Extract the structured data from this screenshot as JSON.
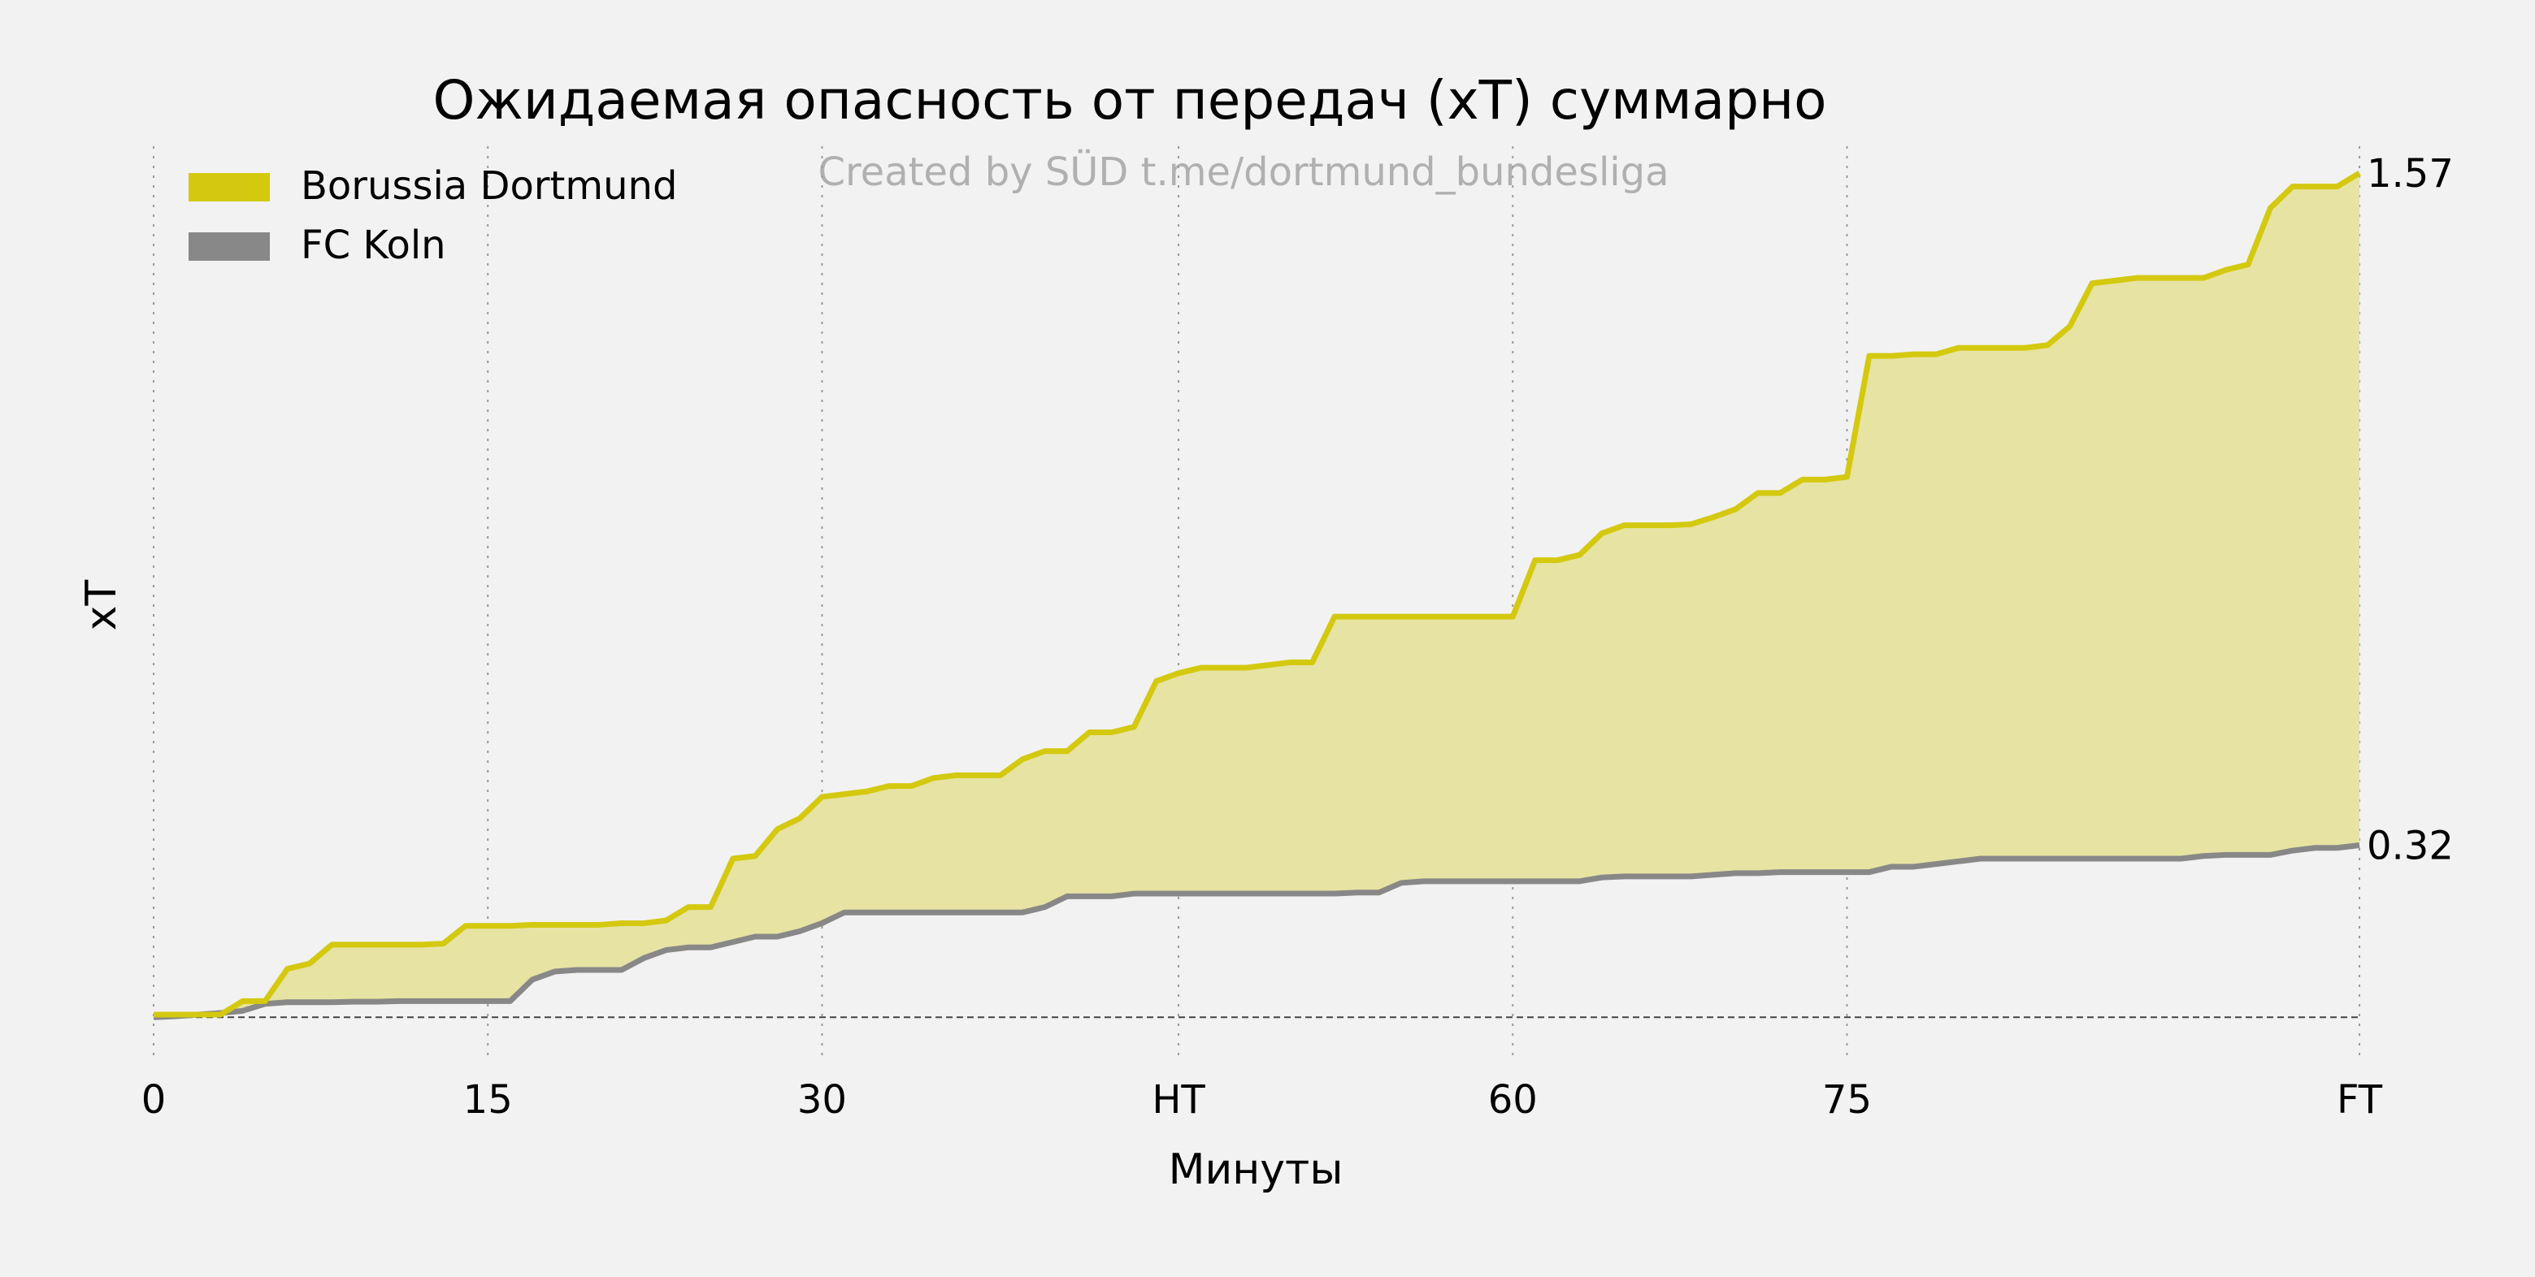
{
  "chart_data": {
    "type": "area",
    "title": "Ожидаемая опасность от передач (xT) суммарно",
    "watermark": "Created by SÜD t.me/dortmund_bundesliga",
    "xlabel": "Минуты",
    "ylabel": "xT",
    "xlim": [
      0,
      99
    ],
    "ylim": [
      -0.06,
      1.62
    ],
    "xticks": [
      {
        "value": 0,
        "label": "0"
      },
      {
        "value": 15,
        "label": "15"
      },
      {
        "value": 30,
        "label": "30"
      },
      {
        "value": 46,
        "label": "HT"
      },
      {
        "value": 61,
        "label": "60"
      },
      {
        "value": 76,
        "label": "75"
      },
      {
        "value": 99,
        "label": "FT"
      }
    ],
    "grid": {
      "x": true,
      "y": false,
      "style": "dotted"
    },
    "baseline": 0,
    "legend": {
      "position": "top-left"
    },
    "series": [
      {
        "name": "Borussia Dortmund",
        "color": "#d4c90f",
        "fill": "#e7e3a3",
        "final_label": "1.57",
        "x": [
          0,
          1,
          2,
          3,
          4,
          5,
          6,
          7,
          8,
          9,
          10,
          11,
          12,
          13,
          14,
          15,
          16,
          17,
          18,
          19,
          20,
          21,
          22,
          23,
          24,
          25,
          26,
          27,
          28,
          29,
          30,
          31,
          32,
          33,
          34,
          35,
          36,
          37,
          38,
          39,
          40,
          41,
          42,
          43,
          44,
          45,
          46,
          47,
          48,
          49,
          50,
          51,
          52,
          53,
          54,
          55,
          56,
          57,
          58,
          59,
          60,
          61,
          62,
          63,
          64,
          65,
          66,
          67,
          68,
          69,
          70,
          71,
          72,
          73,
          74,
          75,
          76,
          77,
          78,
          79,
          80,
          81,
          82,
          83,
          84,
          85,
          86,
          87,
          88,
          89,
          90,
          91,
          92,
          93,
          94,
          95,
          96,
          97,
          98,
          99
        ],
        "values": [
          0.005,
          0.005,
          0.005,
          0.005,
          0.03,
          0.03,
          0.09,
          0.1,
          0.135,
          0.135,
          0.135,
          0.135,
          0.135,
          0.137,
          0.17,
          0.17,
          0.17,
          0.172,
          0.172,
          0.172,
          0.172,
          0.175,
          0.175,
          0.18,
          0.205,
          0.205,
          0.295,
          0.3,
          0.35,
          0.37,
          0.41,
          0.415,
          0.42,
          0.43,
          0.43,
          0.445,
          0.45,
          0.45,
          0.45,
          0.48,
          0.495,
          0.495,
          0.53,
          0.53,
          0.54,
          0.625,
          0.64,
          0.65,
          0.65,
          0.65,
          0.655,
          0.66,
          0.66,
          0.745,
          0.745,
          0.745,
          0.745,
          0.745,
          0.745,
          0.745,
          0.745,
          0.745,
          0.85,
          0.85,
          0.86,
          0.9,
          0.915,
          0.915,
          0.915,
          0.917,
          0.93,
          0.945,
          0.975,
          0.975,
          1.0,
          1.0,
          1.005,
          1.23,
          1.23,
          1.233,
          1.233,
          1.245,
          1.245,
          1.245,
          1.245,
          1.25,
          1.285,
          1.365,
          1.37,
          1.375,
          1.375,
          1.375,
          1.375,
          1.39,
          1.4,
          1.505,
          1.545,
          1.545,
          1.545,
          1.57
        ]
      },
      {
        "name": "FC Koln",
        "color": "#888888",
        "fill": "none",
        "final_label": "0.32",
        "x": [
          0,
          1,
          2,
          3,
          4,
          5,
          6,
          7,
          8,
          9,
          10,
          11,
          12,
          13,
          14,
          15,
          16,
          17,
          18,
          19,
          20,
          21,
          22,
          23,
          24,
          25,
          26,
          27,
          28,
          29,
          30,
          31,
          32,
          33,
          34,
          35,
          36,
          37,
          38,
          39,
          40,
          41,
          42,
          43,
          44,
          45,
          46,
          47,
          48,
          49,
          50,
          51,
          52,
          53,
          54,
          55,
          56,
          57,
          58,
          59,
          60,
          61,
          62,
          63,
          64,
          65,
          66,
          67,
          68,
          69,
          70,
          71,
          72,
          73,
          74,
          75,
          76,
          77,
          78,
          79,
          80,
          81,
          82,
          83,
          84,
          85,
          86,
          87,
          88,
          89,
          90,
          91,
          92,
          93,
          94,
          95,
          96,
          97,
          98,
          99
        ],
        "values": [
          0.0,
          0.002,
          0.005,
          0.008,
          0.012,
          0.025,
          0.028,
          0.028,
          0.028,
          0.029,
          0.029,
          0.03,
          0.03,
          0.03,
          0.03,
          0.03,
          0.03,
          0.07,
          0.085,
          0.088,
          0.088,
          0.088,
          0.11,
          0.125,
          0.13,
          0.13,
          0.14,
          0.15,
          0.15,
          0.16,
          0.175,
          0.195,
          0.195,
          0.195,
          0.195,
          0.195,
          0.195,
          0.195,
          0.195,
          0.195,
          0.205,
          0.225,
          0.225,
          0.225,
          0.23,
          0.23,
          0.23,
          0.23,
          0.23,
          0.23,
          0.23,
          0.23,
          0.23,
          0.23,
          0.232,
          0.232,
          0.25,
          0.253,
          0.253,
          0.253,
          0.253,
          0.253,
          0.253,
          0.253,
          0.253,
          0.26,
          0.262,
          0.262,
          0.262,
          0.262,
          0.265,
          0.268,
          0.268,
          0.27,
          0.27,
          0.27,
          0.27,
          0.27,
          0.28,
          0.28,
          0.285,
          0.29,
          0.295,
          0.295,
          0.295,
          0.295,
          0.295,
          0.295,
          0.295,
          0.295,
          0.295,
          0.295,
          0.3,
          0.302,
          0.302,
          0.302,
          0.31,
          0.315,
          0.315,
          0.32
        ]
      }
    ]
  }
}
